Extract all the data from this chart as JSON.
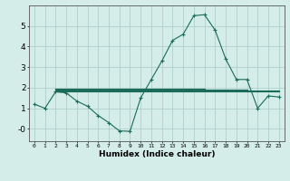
{
  "xlabel": "Humidex (Indice chaleur)",
  "background_color": "#d4ede8",
  "grid_color": "#b0d0cc",
  "line_color": "#1a6b5a",
  "xlim": [
    -0.5,
    23.5
  ],
  "ylim": [
    -0.6,
    6.0
  ],
  "xticks": [
    0,
    1,
    2,
    3,
    4,
    5,
    6,
    7,
    8,
    9,
    10,
    11,
    12,
    13,
    14,
    15,
    16,
    17,
    18,
    19,
    20,
    21,
    22,
    23
  ],
  "yticks": [
    0,
    1,
    2,
    3,
    4,
    5
  ],
  "ytick_labels": [
    "-0",
    "1",
    "2",
    "3",
    "4",
    "5"
  ],
  "main_curve_x": [
    0,
    1,
    2,
    3,
    4,
    5,
    6,
    7,
    8,
    9,
    10,
    11,
    12,
    13,
    14,
    15,
    16,
    17,
    18,
    19,
    20,
    21,
    22,
    23
  ],
  "main_curve_y": [
    1.2,
    1.0,
    1.8,
    1.75,
    1.35,
    1.1,
    0.65,
    0.3,
    -0.1,
    -0.12,
    1.5,
    2.4,
    3.3,
    4.3,
    4.6,
    5.5,
    5.55,
    4.8,
    3.4,
    2.4,
    2.4,
    1.0,
    1.6,
    1.55
  ],
  "flat_lines": [
    {
      "x": [
        2,
        23
      ],
      "y": [
        1.8,
        1.8
      ]
    },
    {
      "x": [
        2,
        23
      ],
      "y": [
        1.85,
        1.85
      ]
    },
    {
      "x": [
        2,
        20
      ],
      "y": [
        1.9,
        1.9
      ]
    },
    {
      "x": [
        2,
        16
      ],
      "y": [
        1.95,
        1.95
      ]
    }
  ]
}
